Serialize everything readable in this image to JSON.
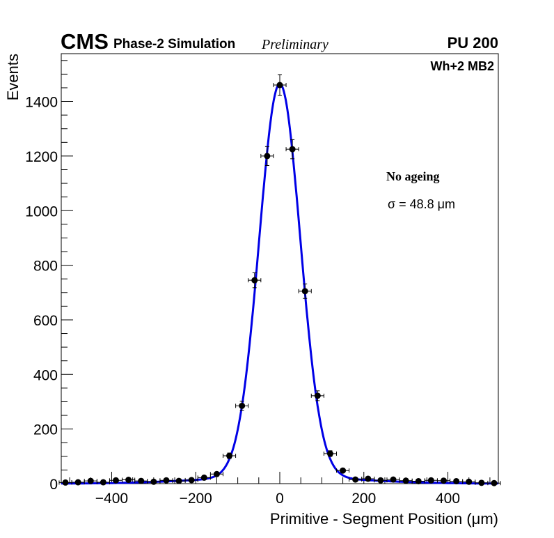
{
  "header": {
    "cms": "CMS",
    "simulation": "Phase-2 Simulation",
    "preliminary": "Preliminary",
    "pileup": "PU 200"
  },
  "chamber_label": "Wh+2 MB2",
  "annotation": {
    "ageing": "No ageing",
    "sigma": "σ = 48.8 μm"
  },
  "colors": {
    "fit_line": "#0000e6",
    "markers": "#000000",
    "frame": "#000000"
  },
  "chart_data": {
    "type": "scatter",
    "title": "",
    "xlabel": "Primitive - Segment Position (μm)",
    "ylabel": "Events",
    "xlim": [
      -520,
      520
    ],
    "ylim": [
      0,
      1575
    ],
    "x_ticks": [
      -400,
      -200,
      0,
      200,
      400
    ],
    "x_tick_labels": [
      "−400",
      "−200",
      "0",
      "200",
      "400"
    ],
    "y_ticks": [
      0,
      200,
      400,
      600,
      800,
      1000,
      1200,
      1400
    ],
    "y_tick_labels": [
      "0",
      "200",
      "400",
      "600",
      "800",
      "1000",
      "1200",
      "1400"
    ],
    "bin_width": 30,
    "series": [
      {
        "name": "data",
        "x": [
          -510,
          -480,
          -450,
          -420,
          -390,
          -360,
          -330,
          -300,
          -270,
          -240,
          -210,
          -180,
          -150,
          -120,
          -90,
          -60,
          -30,
          0,
          30,
          60,
          90,
          120,
          150,
          180,
          210,
          240,
          270,
          300,
          330,
          360,
          390,
          420,
          450,
          480,
          510
        ],
        "y": [
          4,
          5,
          10,
          5,
          12,
          14,
          10,
          7,
          12,
          10,
          13,
          22,
          35,
          102,
          285,
          745,
          1200,
          1460,
          1225,
          705,
          322,
          110,
          48,
          15,
          18,
          12,
          15,
          11,
          9,
          12,
          11,
          9,
          7,
          3,
          2
        ]
      },
      {
        "name": "fit",
        "function": "double-gaussian",
        "core": {
          "amplitude": 1440,
          "mean": 0,
          "sigma": 48.8
        },
        "tail": {
          "amplitude": 25,
          "mean": 0,
          "sigma": 180
        }
      }
    ]
  }
}
